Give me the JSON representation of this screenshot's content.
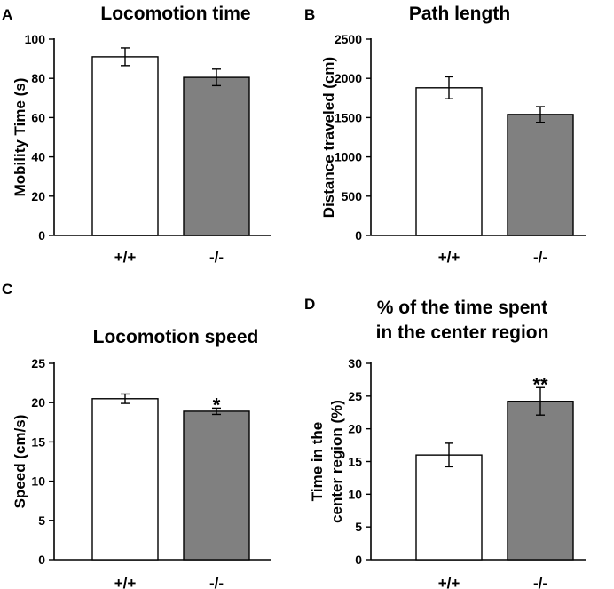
{
  "chart_data": [
    {
      "type": "bar",
      "panel": "A",
      "title": [
        "Locomotion time"
      ],
      "xlabel": "",
      "ylabel": [
        "Mobility Time (s)"
      ],
      "categories": [
        "+/+",
        "-/-"
      ],
      "values": [
        91,
        80.5
      ],
      "errors": [
        4.5,
        4.2
      ],
      "bar_colors": [
        "#ffffff",
        "#808080"
      ],
      "significance": [
        "",
        ""
      ],
      "ylim": [
        0,
        100
      ],
      "yticks": [
        0,
        20,
        40,
        60,
        80,
        100
      ]
    },
    {
      "type": "bar",
      "panel": "B",
      "title": [
        "Path length"
      ],
      "xlabel": "",
      "ylabel": [
        "Distance traveled (cm)"
      ],
      "categories": [
        "+/+",
        "-/-"
      ],
      "values": [
        1880,
        1540
      ],
      "errors": [
        140,
        100
      ],
      "bar_colors": [
        "#ffffff",
        "#808080"
      ],
      "significance": [
        "",
        ""
      ],
      "ylim": [
        0,
        2500
      ],
      "yticks": [
        0,
        500,
        1000,
        1500,
        2000,
        2500
      ]
    },
    {
      "type": "bar",
      "panel": "C",
      "title": [
        "Locomotion speed"
      ],
      "xlabel": "",
      "ylabel": [
        "Speed (cm/s)"
      ],
      "categories": [
        "+/+",
        "-/-"
      ],
      "values": [
        20.5,
        18.9
      ],
      "errors": [
        0.6,
        0.4
      ],
      "bar_colors": [
        "#ffffff",
        "#808080"
      ],
      "significance": [
        "",
        "*"
      ],
      "ylim": [
        0,
        25
      ],
      "yticks": [
        0,
        5,
        10,
        15,
        20,
        25
      ]
    },
    {
      "type": "bar",
      "panel": "D",
      "title": [
        "% of the time spent",
        "in the center region"
      ],
      "xlabel": "",
      "ylabel": [
        "Time in the",
        "center region (%)"
      ],
      "categories": [
        "+/+",
        "-/-"
      ],
      "values": [
        16,
        24.2
      ],
      "errors": [
        1.8,
        2.1
      ],
      "bar_colors": [
        "#ffffff",
        "#808080"
      ],
      "significance": [
        "",
        "**"
      ],
      "ylim": [
        0,
        30
      ],
      "yticks": [
        0,
        5,
        10,
        15,
        20,
        25,
        30
      ]
    }
  ]
}
